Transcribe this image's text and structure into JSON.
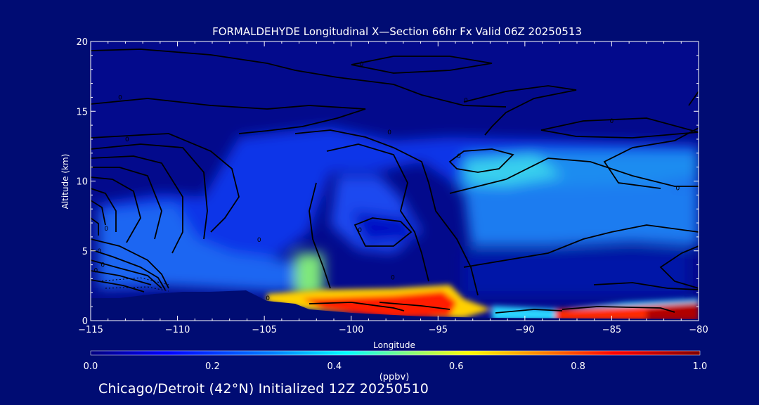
{
  "chart_data": {
    "type": "heatmap",
    "title": "FORMALDEHYDE Longitudinal X—Section 66hr  Fx Valid 06Z 20250513",
    "xlabel": "Longitude",
    "ylabel": "Altitude (km)",
    "xlim": [
      -115,
      -80
    ],
    "ylim": [
      0,
      20
    ],
    "x_ticks": [
      "−115",
      "−110",
      "−105",
      "−100",
      "−95",
      "−90",
      "−85",
      "−80"
    ],
    "x_tick_values": [
      -115,
      -110,
      -105,
      -100,
      -95,
      -90,
      -85,
      -80
    ],
    "y_ticks": [
      "0",
      "5",
      "10",
      "15",
      "20"
    ],
    "y_tick_values": [
      0,
      5,
      10,
      15,
      20
    ],
    "colorbar": {
      "unit_label": "(ppbv)",
      "min": 0.0,
      "max": 1.0,
      "tick_labels": [
        "0.0",
        "0.2",
        "0.4",
        "0.6",
        "0.8",
        "1.0"
      ],
      "tick_values": [
        0.0,
        0.2,
        0.4,
        0.6,
        0.8,
        1.0
      ],
      "colors": [
        "#00007f",
        "#0000ff",
        "#0080ff",
        "#00ffff",
        "#80ff80",
        "#ffff00",
        "#ff8000",
        "#ff0000",
        "#800000"
      ]
    },
    "field": [
      {
        "lon": -114.5,
        "alt_min": 2.0,
        "alt_max": 7.0,
        "value": 0.2
      },
      {
        "lon": -112.5,
        "alt_min": 2.0,
        "alt_max": 7.5,
        "value": 0.22
      },
      {
        "lon": -110.0,
        "alt_min": 2.0,
        "alt_max": 8.0,
        "value": 0.24
      },
      {
        "lon": -107.5,
        "alt_min": 2.0,
        "alt_max": 11.5,
        "value": 0.18
      },
      {
        "lon": -105.0,
        "alt_min": 1.5,
        "alt_max": 11.0,
        "value": 0.2
      },
      {
        "lon": -103.0,
        "alt_min": 1.5,
        "alt_max": 4.0,
        "value": 0.45
      },
      {
        "lon": -100.5,
        "alt_min": 5.0,
        "alt_max": 10.0,
        "value": 0.25
      },
      {
        "lon": -98.0,
        "alt_min": 6.0,
        "alt_max": 7.5,
        "value": 0.05
      },
      {
        "lon": -96.0,
        "alt_min": 1.0,
        "alt_max": 2.0,
        "value": 0.85
      },
      {
        "lon": -94.5,
        "alt_min": 1.0,
        "alt_max": 2.0,
        "value": 0.9
      },
      {
        "lon": -92.0,
        "alt_min": 9.5,
        "alt_max": 12.5,
        "value": 0.38
      },
      {
        "lon": -90.0,
        "alt_min": 5.0,
        "alt_max": 12.5,
        "value": 0.3
      },
      {
        "lon": -85.0,
        "alt_min": 9.5,
        "alt_max": 12.0,
        "value": 0.35
      },
      {
        "lon": -85.0,
        "alt_min": 0.3,
        "alt_max": 1.0,
        "value": 0.85
      },
      {
        "lon": -81.0,
        "alt_min": 0.3,
        "alt_max": 1.5,
        "value": 0.9
      }
    ],
    "contour_labels": [
      {
        "text": "0",
        "lon": -113.3,
        "alt": 16.0
      },
      {
        "text": "0",
        "lon": -99.4,
        "alt": 18.4
      },
      {
        "text": "0",
        "lon": -93.4,
        "alt": 15.8
      },
      {
        "text": "0",
        "lon": -112.9,
        "alt": 13.0
      },
      {
        "text": "0",
        "lon": -97.8,
        "alt": 13.5
      },
      {
        "text": "0",
        "lon": -85.0,
        "alt": 14.3
      },
      {
        "text": "0",
        "lon": -93.8,
        "alt": 11.8
      },
      {
        "text": "0",
        "lon": -81.2,
        "alt": 9.5
      },
      {
        "text": "0",
        "lon": -114.1,
        "alt": 6.6
      },
      {
        "text": "0",
        "lon": -99.5,
        "alt": 6.5
      },
      {
        "text": "0",
        "lon": -105.3,
        "alt": 5.8
      },
      {
        "text": "0",
        "lon": -114.5,
        "alt": 5.0
      },
      {
        "text": "0",
        "lon": -114.3,
        "alt": 4.0
      },
      {
        "text": "0",
        "lon": -114.7,
        "alt": 3.6
      },
      {
        "text": "0",
        "lon": -97.6,
        "alt": 3.1
      },
      {
        "text": "0",
        "lon": -104.8,
        "alt": 1.6
      }
    ]
  },
  "footer": "Chicago/Detroit (42°N) Initialized 12Z 20250510"
}
